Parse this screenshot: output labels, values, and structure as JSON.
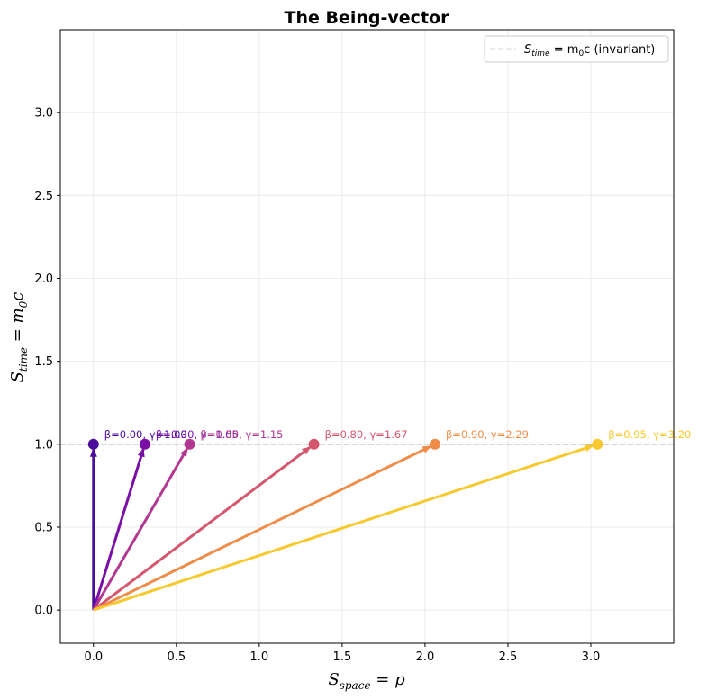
{
  "chart_data": {
    "type": "line",
    "title": "The Being-vector",
    "xlabel": {
      "main": "S",
      "sub": "space",
      "rest": " = p"
    },
    "ylabel": {
      "main": "S",
      "sub": "time",
      "rest": " = m",
      "sub2": "0",
      "rest2": "c"
    },
    "xlim": [
      -0.2,
      3.5
    ],
    "ylim": [
      -0.2,
      3.5
    ],
    "x_ticks": [
      "0.0",
      "0.5",
      "1.0",
      "1.5",
      "2.0",
      "2.5",
      "3.0"
    ],
    "y_ticks": [
      "0.0",
      "0.5",
      "1.0",
      "1.5",
      "2.0",
      "2.5",
      "3.0"
    ],
    "grid": true,
    "legend_placement": "top-right",
    "reference_line": {
      "y": 1.0,
      "color": "#b0b0b0",
      "label": {
        "main": "S",
        "sub": "time",
        "mid": " = m",
        "sub2": "0",
        "rest": "c (invariant)"
      }
    },
    "series": [
      {
        "beta": 0.0,
        "gamma": 1.0,
        "x": 0.0,
        "y": 1.0,
        "label": "β=0.00, γ=1.00",
        "color": "#4a0c9c"
      },
      {
        "beta": 0.3,
        "gamma": 1.05,
        "x": 0.31,
        "y": 1.0,
        "label": "β=0.30, γ=1.05",
        "color": "#7a0fa8"
      },
      {
        "beta": 0.5,
        "gamma": 1.15,
        "x": 0.58,
        "y": 1.0,
        "label": "β=0.50, γ=1.15",
        "color": "#b23790"
      },
      {
        "beta": 0.8,
        "gamma": 1.67,
        "x": 1.33,
        "y": 1.0,
        "label": "β=0.80, γ=1.67",
        "color": "#d5566d"
      },
      {
        "beta": 0.9,
        "gamma": 2.29,
        "x": 2.06,
        "y": 1.0,
        "label": "β=0.90, γ=2.29",
        "color": "#f08c47"
      },
      {
        "beta": 0.95,
        "gamma": 3.2,
        "x": 3.04,
        "y": 1.0,
        "label": "β=0.95, γ=3.20",
        "color": "#f7c92e"
      }
    ]
  }
}
